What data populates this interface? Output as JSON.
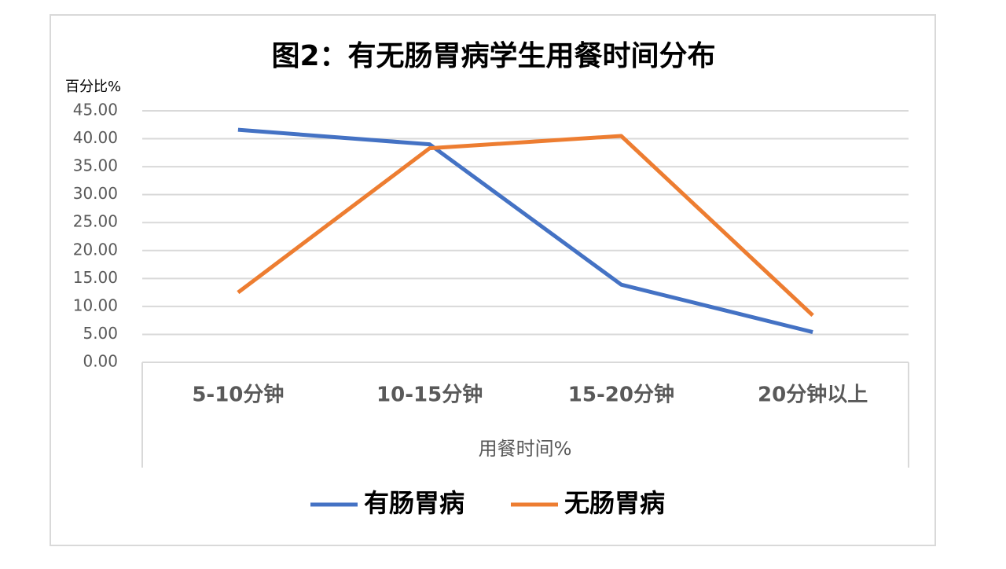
{
  "chart_data": {
    "type": "line",
    "title": "图2：有无肠胃病学生用餐时间分布",
    "y_label": "百分比%",
    "x_label": "用餐时间%",
    "categories": [
      "5-10分钟",
      "10-15分钟",
      "15-20分钟",
      "20分钟以上"
    ],
    "series": [
      {
        "name": "有肠胃病",
        "color": "#4472c4",
        "values": [
          41.6,
          39.0,
          13.9,
          5.4
        ]
      },
      {
        "name": "无肠胃病",
        "color": "#ed7d31",
        "values": [
          12.5,
          38.3,
          40.5,
          8.4
        ]
      }
    ],
    "ylim": [
      0,
      45
    ],
    "yticks": [
      {
        "value": 0,
        "label": "0.00"
      },
      {
        "value": 5,
        "label": "5.00"
      },
      {
        "value": 10,
        "label": "10.00"
      },
      {
        "value": 15,
        "label": "15.00"
      },
      {
        "value": 20,
        "label": "20.00"
      },
      {
        "value": 25,
        "label": "25.00"
      },
      {
        "value": 30,
        "label": "30.00"
      },
      {
        "value": 35,
        "label": "35.00"
      },
      {
        "value": 40,
        "label": "40.00"
      },
      {
        "value": 45,
        "label": "45.00"
      }
    ],
    "grid": true
  }
}
